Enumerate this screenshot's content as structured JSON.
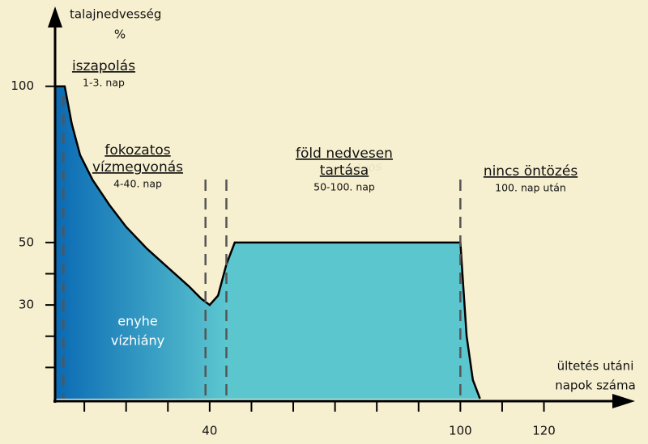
{
  "chart_data": {
    "type": "area",
    "y_label": "talajnedvesség",
    "y_unit": "%",
    "x_label": [
      "ültetés utáni",
      "napok száma"
    ],
    "x": [
      3,
      5.3,
      7,
      9,
      12,
      16,
      20,
      25,
      30,
      35,
      38,
      40,
      42,
      44,
      46,
      100,
      100.5,
      101.5,
      103,
      104.7
    ],
    "values": [
      100,
      100,
      88,
      78,
      70,
      62,
      55,
      48,
      42,
      36,
      32,
      30,
      33,
      43,
      50,
      50,
      40,
      20,
      6,
      0
    ],
    "gradient_colors": [
      "#0a6ab4",
      "#5cc6cf"
    ],
    "line_color": "#000000",
    "xlim": [
      3,
      142
    ],
    "ylim": [
      0,
      124
    ],
    "xticks": [
      40,
      100,
      120
    ],
    "xminorticks": [
      10,
      20,
      30,
      50,
      60,
      70,
      80,
      90,
      110
    ],
    "yticks": [
      30,
      50,
      100
    ],
    "yminorticks": [
      10,
      20,
      40
    ],
    "phase_lines": [
      5,
      39,
      44,
      100
    ],
    "annotations": [
      {
        "title": [
          "iszapolás"
        ],
        "subtitle": "1-3. nap"
      },
      {
        "title": [
          "fokozatos",
          "vízmegvonás"
        ],
        "subtitle": "4-40. nap"
      },
      {
        "title": [
          "föld nedvesen",
          "tartása"
        ],
        "subtitle": "50-100. nap"
      },
      {
        "title": [
          "nincs öntözés"
        ],
        "subtitle": "100. nap után"
      }
    ],
    "area_label": [
      "enyhe",
      "vízhiány"
    ],
    "watermark": [
      "Bivalyos",
      "tanya",
      "ÁSOTTHALOM"
    ]
  }
}
